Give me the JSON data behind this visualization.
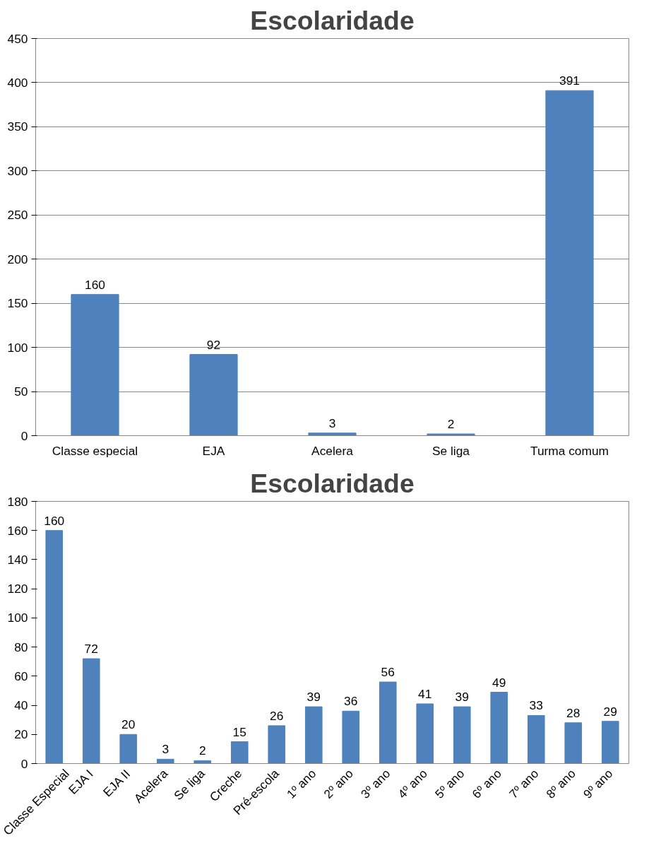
{
  "chart_data": [
    {
      "type": "bar",
      "title": "Escolaridade",
      "categories": [
        "Classe especial",
        "EJA",
        "Acelera",
        "Se liga",
        "Turma comum"
      ],
      "values": [
        160,
        92,
        3,
        2,
        391
      ],
      "color": "#4f81bd",
      "ylim": [
        0,
        450
      ],
      "yticks": [
        0,
        50,
        100,
        150,
        200,
        250,
        300,
        350,
        400,
        450
      ],
      "grid": "y",
      "data_labels": true
    },
    {
      "type": "bar",
      "title": "Escolaridade",
      "categories": [
        "Classe Especial",
        "EJA I",
        "EJA II",
        "Acelera",
        "Se liga",
        "Creche",
        "Pré-escola",
        "1º ano",
        "2º ano",
        "3º ano",
        "4º ano",
        "5º ano",
        "6º ano",
        "7º ano",
        "8º ano",
        "9º ano"
      ],
      "values": [
        160,
        72,
        20,
        3,
        2,
        15,
        26,
        39,
        36,
        56,
        41,
        39,
        49,
        33,
        28,
        29
      ],
      "color": "#4f81bd",
      "ylim": [
        0,
        180
      ],
      "yticks": [
        0,
        20,
        40,
        60,
        80,
        100,
        120,
        140,
        160,
        180
      ],
      "grid": false,
      "data_labels": true
    }
  ]
}
